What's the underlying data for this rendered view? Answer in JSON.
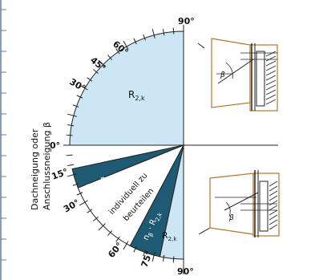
{
  "y_axis_label": [
    "Dachneigung oder",
    "Anschlussneigung β"
  ],
  "angle_labels": {
    "a0": "0°",
    "a15": "15°",
    "a30_top": "30°",
    "a45": "45°",
    "a60_top": "60°",
    "a90_top": "90°",
    "a30_bot": "30°",
    "a60_bot": "60°",
    "a75": "75°",
    "a90_bot": "90°"
  },
  "sectors": {
    "upper_value": "R",
    "upper_sub": "2,k",
    "dark1_text": "n",
    "dark1_beta": "β",
    "dark1_mid": " · R",
    "dark1_sub": "2,k",
    "white_line1": "individuell zu",
    "white_line2": "beurteilen",
    "dark2_text": "n",
    "dark2_beta": "β",
    "dark2_mid": " · R",
    "dark2_sub": "2,k",
    "lower_value": "R",
    "lower_sub": "2,k"
  },
  "beta_symbol_top": "β",
  "beta_symbol_bottom": "β",
  "colors": {
    "light_blue": "#cde6f5",
    "dark_teal": "#1f5a74",
    "brown": "#b8742a",
    "frame": "#222222",
    "left_border": "#5b7fa6"
  }
}
